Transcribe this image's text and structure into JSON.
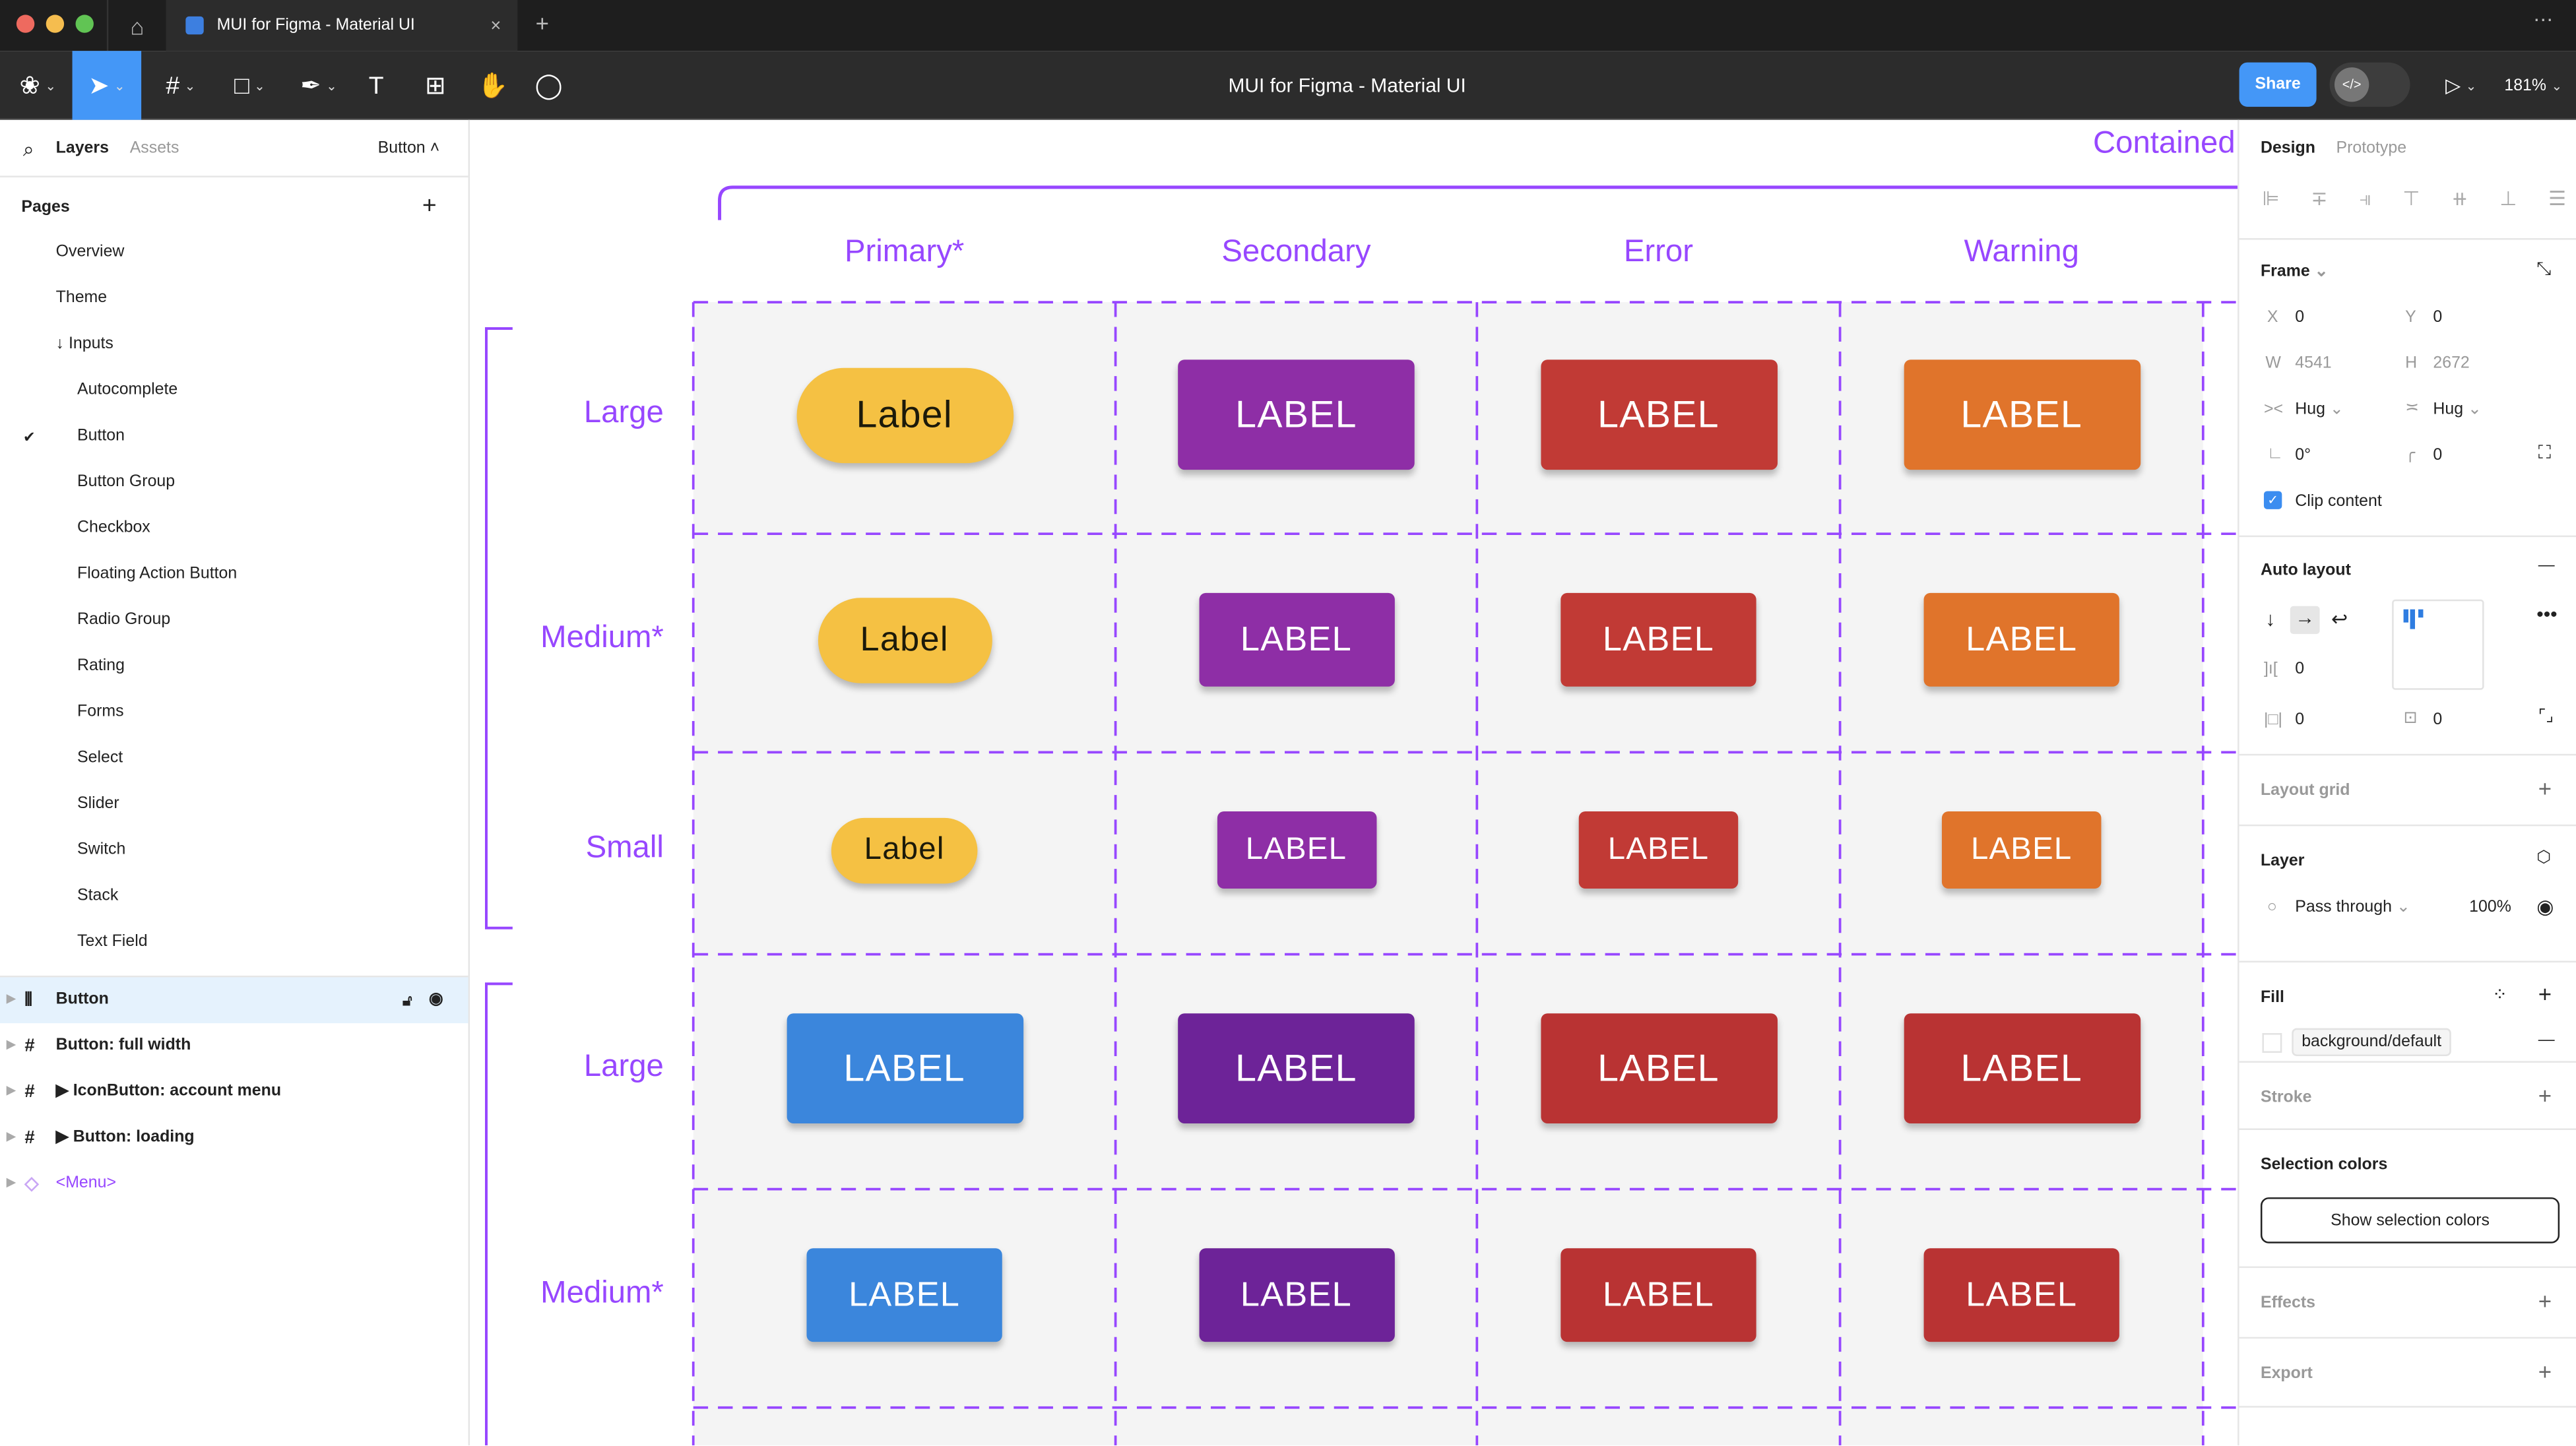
{
  "tab": {
    "title": "MUI for Figma - Material UI"
  },
  "toolbar": {
    "file_title": "MUI for Figma - Material UI",
    "share_label": "Share",
    "zoom": "181%",
    "code_icon": "</>"
  },
  "left_panel": {
    "tabs": {
      "layers": "Layers",
      "assets": "Assets"
    },
    "current_page": "Button",
    "pages_title": "Pages",
    "pages": [
      "Overview",
      "Theme",
      "↓ Inputs",
      "Autocomplete",
      "Button",
      "Button Group",
      "Checkbox",
      "Floating Action Button",
      "Radio Group",
      "Rating",
      "Forms",
      "Select",
      "Slider",
      "Switch",
      "Stack",
      "Text Field"
    ],
    "layers": [
      {
        "label": "Button",
        "icon": "auto-layout-icon",
        "selected": true
      },
      {
        "label": "Button: full width",
        "icon": "frame-icon"
      },
      {
        "label": "▶ IconButton: account menu",
        "icon": "frame-icon"
      },
      {
        "label": "▶ Button: loading",
        "icon": "frame-icon"
      },
      {
        "label": "<Menu>",
        "icon": "component-icon"
      }
    ]
  },
  "canvas": {
    "section_title": "Contained",
    "columns": [
      "Primary*",
      "Secondary",
      "Error",
      "Warning"
    ],
    "accent": "#9747FF",
    "rows": [
      {
        "label": "Large",
        "size": "large",
        "buttons": [
          {
            "text": "Label",
            "color": "#F5C143",
            "pill": true
          },
          {
            "text": "LABEL",
            "color": "#8E2EA6"
          },
          {
            "text": "LABEL",
            "color": "#C13A35"
          },
          {
            "text": "LABEL",
            "color": "#E0742B"
          }
        ]
      },
      {
        "label": "Medium*",
        "size": "medium",
        "buttons": [
          {
            "text": "Label",
            "color": "#F5C143",
            "pill": true
          },
          {
            "text": "LABEL",
            "color": "#8E2EA6"
          },
          {
            "text": "LABEL",
            "color": "#C13A35"
          },
          {
            "text": "LABEL",
            "color": "#E0742B"
          }
        ]
      },
      {
        "label": "Small",
        "size": "small",
        "buttons": [
          {
            "text": "Label",
            "color": "#F5C143",
            "pill": true
          },
          {
            "text": "LABEL",
            "color": "#8E2EA6"
          },
          {
            "text": "LABEL",
            "color": "#C13A35"
          },
          {
            "text": "LABEL",
            "color": "#E0742B"
          }
        ]
      },
      {
        "label": "Large",
        "size": "large",
        "buttons": [
          {
            "text": "LABEL",
            "color": "#3B86DC"
          },
          {
            "text": "LABEL",
            "color": "#6D2398"
          },
          {
            "text": "LABEL",
            "color": "#B93333"
          },
          {
            "text": "LABEL",
            "color": "#B93333"
          }
        ]
      },
      {
        "label": "Medium*",
        "size": "medium",
        "buttons": [
          {
            "text": "LABEL",
            "color": "#3B86DC"
          },
          {
            "text": "LABEL",
            "color": "#6D2398"
          },
          {
            "text": "LABEL",
            "color": "#B93333"
          },
          {
            "text": "LABEL",
            "color": "#B93333"
          }
        ]
      }
    ]
  },
  "right_panel": {
    "tabs": {
      "design": "Design",
      "prototype": "Prototype"
    },
    "frame": {
      "title": "Frame",
      "x_label": "X",
      "x": "0",
      "y_label": "Y",
      "y": "0",
      "w_label": "W",
      "w": "4541",
      "h_label": "H",
      "h": "2672",
      "width_mode": "Hug",
      "height_mode": "Hug",
      "rotation": "0°",
      "radius": "0",
      "clip_content": "Clip content"
    },
    "auto_layout": {
      "title": "Auto layout",
      "gap": "0",
      "padding_h": "0",
      "padding_v": "0"
    },
    "layout_grid": "Layout grid",
    "layer": {
      "title": "Layer",
      "blend": "Pass through",
      "opacity": "100%"
    },
    "fill": {
      "title": "Fill",
      "style": "background/default"
    },
    "stroke": "Stroke",
    "selection_colors": {
      "title": "Selection colors",
      "button": "Show selection colors"
    },
    "effects": "Effects",
    "export": "Export"
  }
}
